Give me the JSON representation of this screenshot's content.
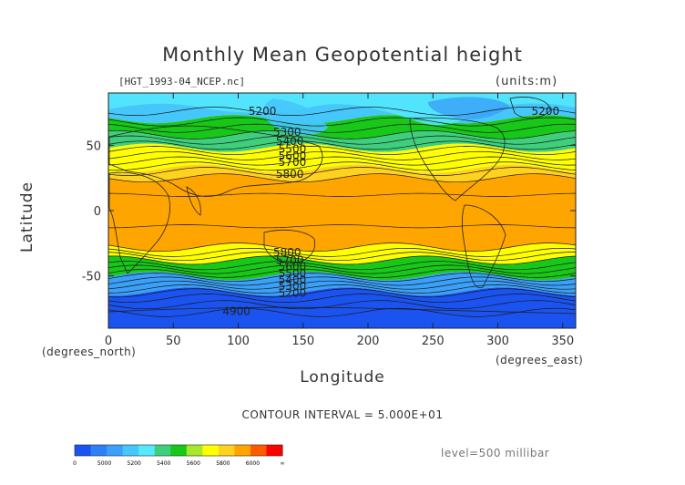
{
  "header": {
    "title": "Monthly Mean Geopotential height",
    "file": "[HGT_1993-04_NCEP.nc]",
    "units": "(units:m)"
  },
  "axes": {
    "xlabel": "Longitude",
    "ylabel": "Latitude",
    "x_unit": "(degrees_east)",
    "y_unit": "(degrees_north)"
  },
  "footer": {
    "contour_interval": "CONTOUR INTERVAL = 5.000E+01",
    "level": "level=500 millibar"
  },
  "chart_data": {
    "type": "heatmap",
    "title": "Monthly Mean Geopotential height",
    "xlabel": "Longitude",
    "ylabel": "Latitude",
    "xlim": [
      0,
      360
    ],
    "ylim": [
      -90,
      90
    ],
    "x_ticks": [
      0,
      50,
      100,
      150,
      200,
      250,
      300,
      350
    ],
    "y_ticks": [
      50,
      0,
      -50
    ],
    "contour_interval": 50,
    "color_levels": [
      0,
      4950,
      5000,
      5100,
      5200,
      5300,
      5400,
      5500,
      5600,
      5700,
      5800,
      5900,
      6000,
      6100
    ],
    "colors": [
      "#1a53f0",
      "#2e80f5",
      "#3aa0f8",
      "#45c7fb",
      "#55e9fd",
      "#3fcf7c",
      "#18c818",
      "#a8e82a",
      "#ffff00",
      "#ffd21f",
      "#ffa500",
      "#ff5a00",
      "#ff0000"
    ],
    "colorbar_labels": [
      "0",
      "5000",
      "5200",
      "5400",
      "5600",
      "5800",
      "6000",
      "∞"
    ],
    "bands": [
      {
        "lat_range": [
          70,
          90
        ],
        "value": "5100-5300",
        "color": "#45c7fb"
      },
      {
        "lat_range": [
          58,
          70
        ],
        "value": "5300-5400",
        "color": "#18c818"
      },
      {
        "lat_range": [
          48,
          58
        ],
        "value": "5400-5500",
        "color": "#3fcf7c"
      },
      {
        "lat_range": [
          32,
          48
        ],
        "value": "5600-5700",
        "color": "#ffff00"
      },
      {
        "lat_range": [
          25,
          32
        ],
        "value": "5700-5800",
        "color": "#ffd21f"
      },
      {
        "lat_range": [
          -28,
          25
        ],
        "value": "5800-5900",
        "color": "#ffa500"
      },
      {
        "lat_range": [
          -38,
          -28
        ],
        "value": "5600-5800",
        "color": "#ffff00"
      },
      {
        "lat_range": [
          -50,
          -38
        ],
        "value": "5400-5500",
        "color": "#18c818"
      },
      {
        "lat_range": [
          -62,
          -50
        ],
        "value": "5200-5300",
        "color": "#3aa0f8"
      },
      {
        "lat_range": [
          -90,
          -62
        ],
        "value": "4900-5000",
        "color": "#1a53f0"
      }
    ],
    "contour_labels": [
      {
        "text": "5200",
        "lon": 108,
        "lat": 76
      },
      {
        "text": "5200",
        "lon": 326,
        "lat": 76
      },
      {
        "text": "5300",
        "lon": 127,
        "lat": 60
      },
      {
        "text": "5400",
        "lon": 129,
        "lat": 53
      },
      {
        "text": "5500",
        "lon": 131,
        "lat": 47
      },
      {
        "text": "5600",
        "lon": 131,
        "lat": 42
      },
      {
        "text": "5700",
        "lon": 131,
        "lat": 37
      },
      {
        "text": "5800",
        "lon": 129,
        "lat": 28
      },
      {
        "text": "5800",
        "lon": 127,
        "lat": -32
      },
      {
        "text": "5700",
        "lon": 129,
        "lat": -38
      },
      {
        "text": "5600",
        "lon": 131,
        "lat": -43
      },
      {
        "text": "5500",
        "lon": 131,
        "lat": -48
      },
      {
        "text": "5400",
        "lon": 131,
        "lat": -53
      },
      {
        "text": "5300",
        "lon": 131,
        "lat": -58
      },
      {
        "text": "5200",
        "lon": 131,
        "lat": -63
      },
      {
        "text": "4900",
        "lon": 88,
        "lat": -77
      }
    ]
  }
}
